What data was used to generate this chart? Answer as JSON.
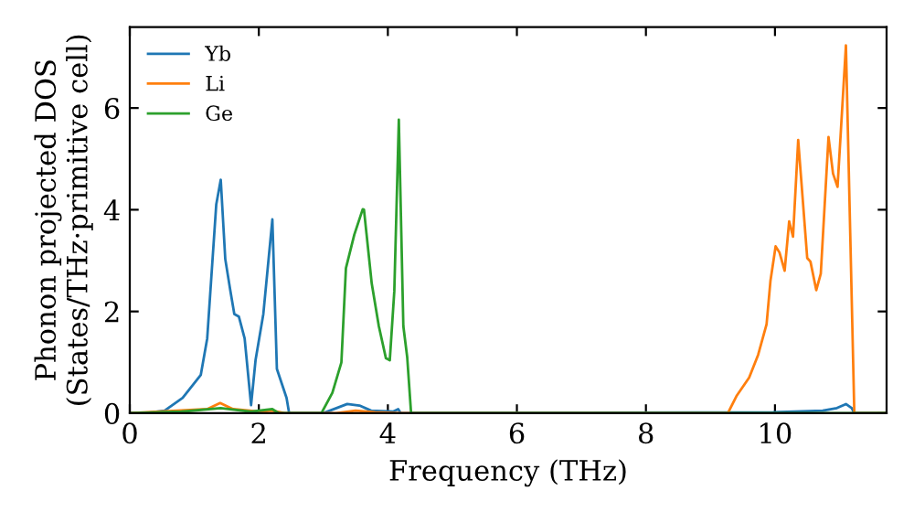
{
  "chart_data": {
    "type": "line",
    "xlabel": "Frequency (THz)",
    "ylabel": "Phonon projected DOS\n(States/THz·primitive cell)",
    "xlim": [
      0,
      11.73
    ],
    "ylim": [
      0,
      7.59
    ],
    "xticks": [
      0,
      2,
      4,
      6,
      8,
      10
    ],
    "yticks": [
      0,
      2,
      4,
      6
    ],
    "grid": false,
    "legend": "top left",
    "marker": "none",
    "line_style": "solid",
    "series": [
      {
        "name": "Yb",
        "color": "#1f77b4",
        "x": [
          0,
          0.3,
          0.54,
          0.82,
          1.1,
          1.2,
          1.34,
          1.41,
          1.48,
          1.56,
          1.62,
          1.69,
          1.78,
          1.88,
          1.95,
          2.07,
          2.21,
          2.28,
          2.43,
          2.47,
          3.0,
          3.37,
          3.56,
          3.74,
          4.08,
          4.16,
          4.2,
          9.97,
          10.74,
          10.96,
          11.1,
          11.19,
          11.23,
          11.73
        ],
        "values": [
          0,
          0.01,
          0.05,
          0.3,
          0.75,
          1.47,
          4.1,
          4.59,
          3.03,
          2.4,
          1.95,
          1.9,
          1.47,
          0.16,
          1.05,
          1.95,
          3.81,
          0.87,
          0.3,
          0,
          0,
          0.18,
          0.15,
          0.05,
          0.03,
          0.08,
          0,
          0.02,
          0.05,
          0.1,
          0.18,
          0.1,
          0,
          0
        ]
      },
      {
        "name": "Li",
        "color": "#ff7f0e",
        "x": [
          0,
          1.2,
          1.4,
          1.6,
          2.0,
          2.2,
          2.4,
          3.2,
          3.5,
          3.8,
          4.2,
          9.27,
          9.41,
          9.6,
          9.74,
          9.87,
          9.93,
          10.01,
          10.07,
          10.15,
          10.22,
          10.28,
          10.36,
          10.5,
          10.55,
          10.64,
          10.71,
          10.83,
          10.9,
          10.97,
          11.1,
          11.23,
          11.73
        ],
        "values": [
          0,
          0.08,
          0.2,
          0.08,
          0.03,
          0.05,
          0,
          0,
          0.05,
          0.02,
          0,
          0,
          0.35,
          0.7,
          1.15,
          1.75,
          2.6,
          3.28,
          3.16,
          2.8,
          3.77,
          3.47,
          5.37,
          3.05,
          2.98,
          2.42,
          2.74,
          5.43,
          4.71,
          4.45,
          7.23,
          0,
          0
        ]
      },
      {
        "name": "Ge",
        "color": "#2ca02c",
        "x": [
          0,
          0.8,
          1.41,
          1.88,
          2.21,
          2.31,
          2.97,
          3.14,
          3.28,
          3.35,
          3.48,
          3.61,
          3.63,
          3.75,
          3.86,
          3.97,
          4.03,
          4.1,
          4.17,
          4.24,
          4.3,
          4.36,
          11.73
        ],
        "values": [
          0,
          0.03,
          0.1,
          0.03,
          0.08,
          0,
          0,
          0.4,
          1.0,
          2.85,
          3.51,
          4.01,
          4.0,
          2.55,
          1.71,
          1.08,
          1.04,
          2.4,
          5.77,
          1.71,
          1.1,
          0,
          0
        ]
      }
    ]
  }
}
